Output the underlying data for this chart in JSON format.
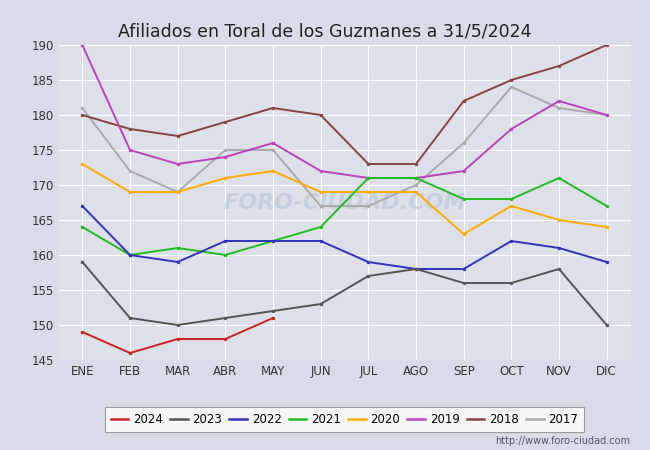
{
  "title": "Afiliados en Toral de los Guzmanes a 31/5/2024",
  "ylim": [
    145,
    190
  ],
  "yticks": [
    145,
    150,
    155,
    160,
    165,
    170,
    175,
    180,
    185,
    190
  ],
  "months": [
    "ENE",
    "FEB",
    "MAR",
    "ABR",
    "MAY",
    "JUN",
    "JUL",
    "AGO",
    "SEP",
    "OCT",
    "NOV",
    "DIC"
  ],
  "series": {
    "2024": {
      "color": "#cc2222",
      "data": [
        149,
        146,
        148,
        148,
        151,
        null,
        null,
        null,
        null,
        null,
        null,
        null
      ]
    },
    "2023": {
      "color": "#555555",
      "data": [
        159,
        151,
        150,
        151,
        152,
        153,
        157,
        158,
        156,
        156,
        158,
        150
      ]
    },
    "2022": {
      "color": "#3333bb",
      "data": [
        167,
        160,
        159,
        162,
        162,
        162,
        159,
        158,
        158,
        162,
        161,
        159
      ]
    },
    "2021": {
      "color": "#22bb22",
      "data": [
        164,
        160,
        161,
        160,
        162,
        164,
        171,
        171,
        168,
        168,
        171,
        167
      ]
    },
    "2020": {
      "color": "#ffaa00",
      "data": [
        173,
        169,
        169,
        171,
        172,
        169,
        169,
        169,
        163,
        167,
        165,
        164
      ]
    },
    "2019": {
      "color": "#bb44bb",
      "data": [
        190,
        175,
        173,
        174,
        176,
        172,
        171,
        171,
        172,
        178,
        182,
        180
      ]
    },
    "2018": {
      "color": "#884444",
      "data": [
        180,
        178,
        177,
        179,
        181,
        180,
        173,
        173,
        182,
        185,
        187,
        190
      ]
    },
    "2017": {
      "color": "#aaaaaa",
      "data": [
        181,
        172,
        169,
        175,
        175,
        167,
        167,
        170,
        176,
        184,
        181,
        180
      ]
    }
  },
  "fig_bg": "#d8dce8",
  "plot_bg": "#dde0e8",
  "grid_color": "#ffffff",
  "title_color": "#222222",
  "footer_url": "http://www.foro-ciudad.com"
}
